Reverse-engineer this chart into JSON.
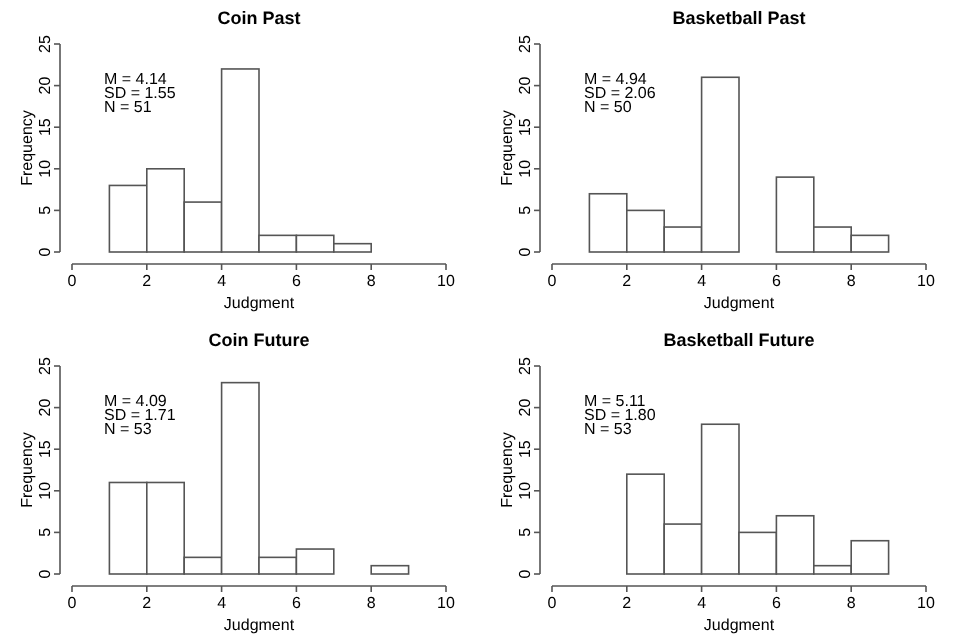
{
  "chart_data": [
    {
      "type": "histogram",
      "title": "Coin Past",
      "xlabel": "Judgment",
      "ylabel": "Frequency",
      "bins": [
        1,
        2,
        3,
        4,
        5,
        6,
        7,
        8
      ],
      "values": [
        8,
        10,
        6,
        22,
        2,
        2,
        1
      ],
      "color": "#ffffff",
      "xlim": [
        0,
        10
      ],
      "xticks": [
        0,
        2,
        4,
        6,
        8,
        10
      ],
      "ylim": [
        0,
        25
      ],
      "yticks": [
        0,
        5,
        10,
        15,
        20,
        25
      ],
      "annotations": [
        "M = 4.14",
        "SD = 1.55",
        "N = 51"
      ]
    },
    {
      "type": "histogram",
      "title": "Basketball Past",
      "xlabel": "Judgment",
      "ylabel": "Frequency",
      "bins": [
        1,
        2,
        3,
        4,
        5,
        6,
        7,
        8,
        9
      ],
      "values": [
        7,
        5,
        3,
        21,
        0,
        9,
        3,
        2
      ],
      "color": "#ffffff",
      "xlim": [
        0,
        10
      ],
      "xticks": [
        0,
        2,
        4,
        6,
        8,
        10
      ],
      "ylim": [
        0,
        25
      ],
      "yticks": [
        0,
        5,
        10,
        15,
        20,
        25
      ],
      "annotations": [
        "M = 4.94",
        "SD = 2.06",
        "N = 50"
      ]
    },
    {
      "type": "histogram",
      "title": "Coin Future",
      "xlabel": "Judgment",
      "ylabel": "Frequency",
      "bins": [
        1,
        2,
        3,
        4,
        5,
        6,
        7,
        8,
        9
      ],
      "values": [
        11,
        11,
        2,
        23,
        2,
        3,
        0,
        1
      ],
      "color": "#ffffff",
      "xlim": [
        0,
        10
      ],
      "xticks": [
        0,
        2,
        4,
        6,
        8,
        10
      ],
      "ylim": [
        0,
        25
      ],
      "yticks": [
        0,
        5,
        10,
        15,
        20,
        25
      ],
      "annotations": [
        "M = 4.09",
        "SD = 1.71",
        "N = 53"
      ]
    },
    {
      "type": "histogram",
      "title": "Basketball Future",
      "xlabel": "Judgment",
      "ylabel": "Frequency",
      "bins": [
        2,
        3,
        4,
        5,
        6,
        7,
        8,
        9
      ],
      "values": [
        12,
        6,
        18,
        5,
        7,
        1,
        4
      ],
      "color": "#ffffff",
      "xlim": [
        0,
        10
      ],
      "xticks": [
        0,
        2,
        4,
        6,
        8,
        10
      ],
      "ylim": [
        0,
        25
      ],
      "yticks": [
        0,
        5,
        10,
        15,
        20,
        25
      ],
      "annotations": [
        "M = 5.11",
        "SD = 1.80",
        "N = 53"
      ]
    }
  ]
}
